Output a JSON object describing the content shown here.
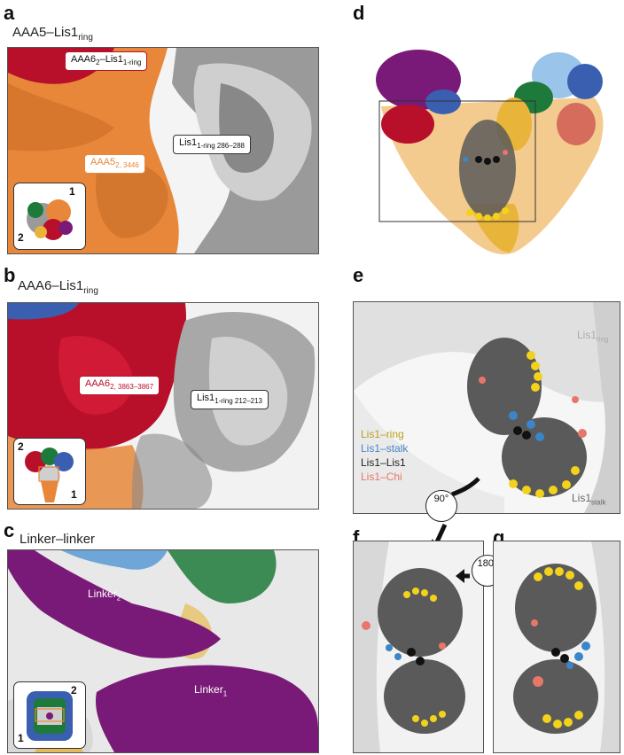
{
  "panels": {
    "a": {
      "letter": "a",
      "title_main": "AAA5–Lis1",
      "title_sub": "ring",
      "tag1_main": "AAA6",
      "tag1_s1": "2",
      "tag1_mid": "–Lis1",
      "tag1_s2": "1-ring",
      "tag2_main": "AAA5",
      "tag2_sub": "2, 3446",
      "tag3_main": "Lis1",
      "tag3_sub": "1-ring 286–288",
      "inset_n1": "1",
      "inset_n2": "2"
    },
    "b": {
      "letter": "b",
      "title_main": "AAA6–Lis1",
      "title_sub": "ring",
      "tag1_main": "AAA6",
      "tag1_sub": "2, 3863–3867",
      "tag2_main": "Lis1",
      "tag2_sub": "1-ring 212–213",
      "inset_n1": "2",
      "inset_n2": "1"
    },
    "c": {
      "letter": "c",
      "title": "Linker–linker",
      "tag1_main": "Linker",
      "tag1_sub": "2",
      "tag2_main": "Linker",
      "tag2_sub": "1",
      "inset_n1": "2",
      "inset_n2": "1"
    },
    "d": {
      "letter": "d"
    },
    "e": {
      "letter": "e",
      "label_ring_main": "Lis1",
      "label_ring_sub": "ring",
      "label_stalk_main": "Lis1",
      "label_stalk_sub": "stalk"
    },
    "f": {
      "letter": "f",
      "rotation": "90°"
    },
    "g": {
      "letter": "g",
      "rotation": "180°"
    }
  },
  "legend": [
    {
      "text": "Lis1–ring",
      "color": "#b8a11a"
    },
    {
      "text": "Lis1–stalk",
      "color": "#4a86c8"
    },
    {
      "text": "Lis1–Lis1",
      "color": "#222222"
    },
    {
      "text": "Lis1–Chi",
      "color": "#e8766a"
    }
  ],
  "colors": {
    "orange": "#e8873a",
    "red": "#b8102a",
    "purple": "#7a1a78",
    "blue": "#3a5fb0",
    "green": "#1e7a3a",
    "gold": "#e8b43a",
    "gray": "#8a8a8a",
    "yellow": "#f2d21a",
    "salmon": "#e8766a"
  }
}
